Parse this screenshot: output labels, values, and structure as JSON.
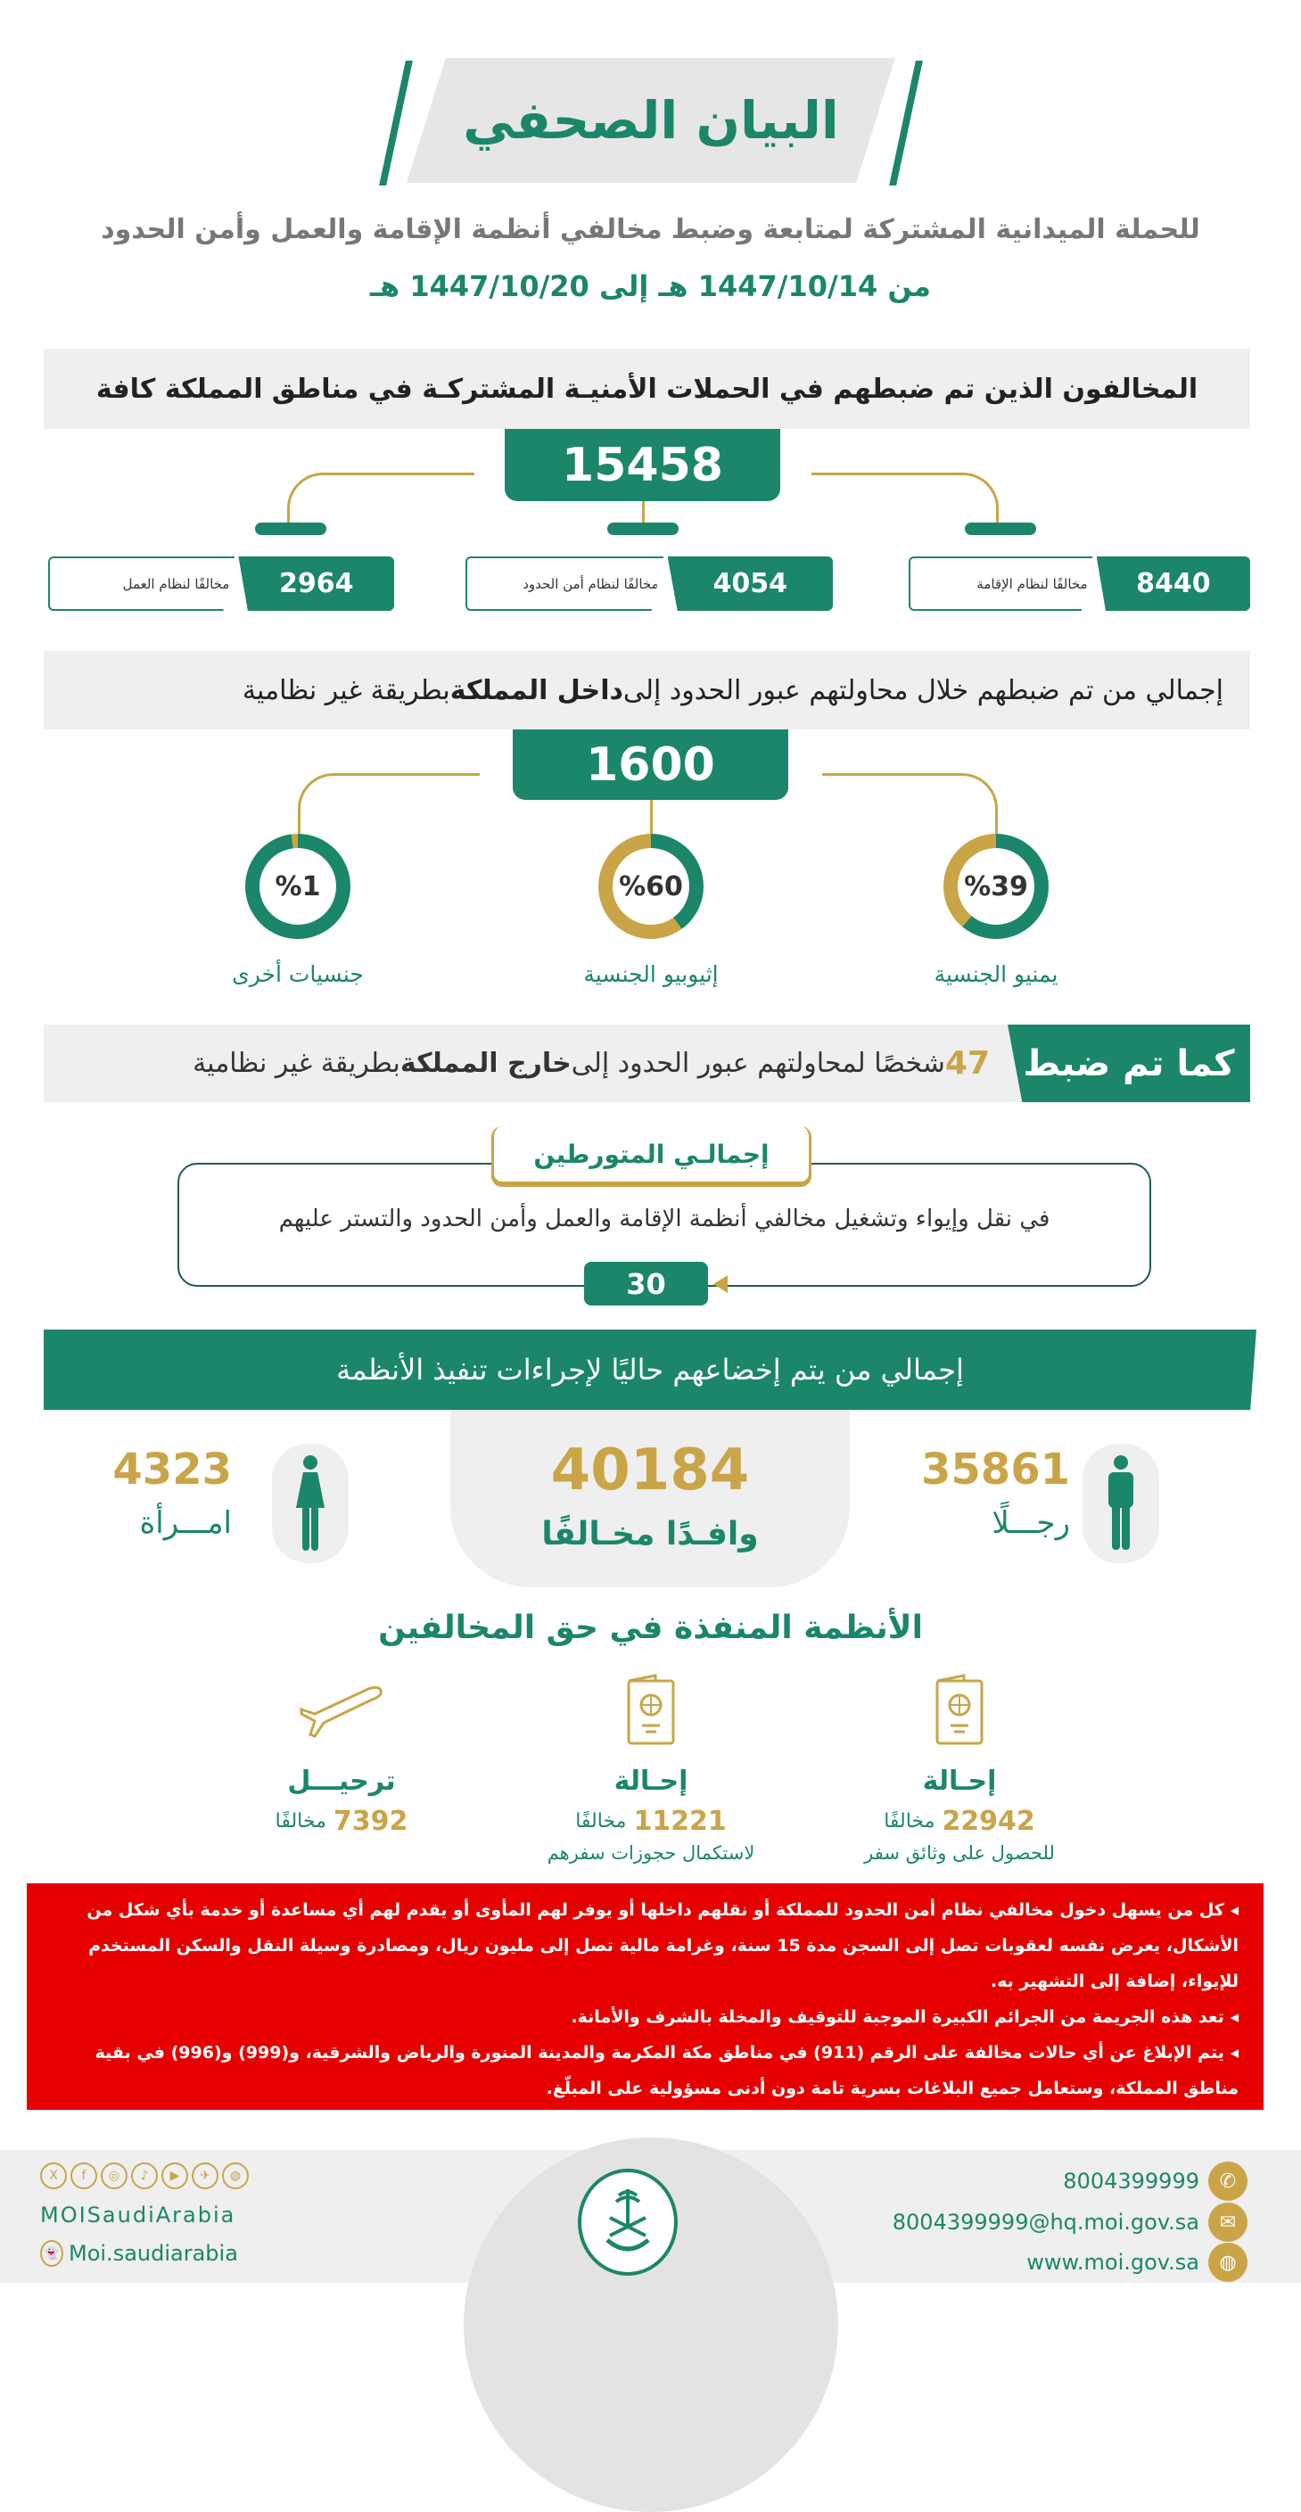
{
  "header": {
    "title": "البيان الصحفي",
    "subtitle": "للحملة الميدانية المشتركة لمتابعة وضبط مخالفي أنظمة الإقامة والعمل وأمن الحدود",
    "date_range": "من 1447/10/14 هـ إلى 1447/10/20 هـ"
  },
  "section1": {
    "heading": "المخالفون الذين تم ضبطهم في الحملات الأمنيـة المشتركـة في مناطق المملكة كافة",
    "total": "15458",
    "items": [
      {
        "value": "8440",
        "label": "مخالفًا لنظام الإقامة"
      },
      {
        "value": "4054",
        "label": "مخالفًا لنظام أمن الحدود"
      },
      {
        "value": "2964",
        "label": "مخالفًا لنظام العمل"
      }
    ]
  },
  "section2": {
    "heading_pre": "إجمالي من تم ضبطهم خلال محاولتهم عبور الحدود إلى ",
    "heading_bold": "داخل المملكة",
    "heading_post": " بطريقة غير نظامية",
    "total": "1600",
    "nationalities": [
      {
        "percent_label": "%39",
        "percent": 39,
        "label": "يمنيو الجنسية"
      },
      {
        "percent_label": "%60",
        "percent": 60,
        "label": "إثيوبيو الجنسية"
      },
      {
        "percent_label": "%1",
        "percent": 1,
        "label": "جنسيات أخرى"
      }
    ]
  },
  "section3": {
    "tag": "كما تم ضبط",
    "count": "47",
    "text_pre": " شخصًا لمحاولتهم عبور الحدود إلى ",
    "text_bold": "خارج المملكة",
    "text_post": " بطريقة غير نظامية"
  },
  "involved": {
    "title": "إجمالـي المتورطين",
    "text": "في نقل وإيواء وتشغيل مخالفي أنظمة الإقامة والعمل وأمن الحدود والتستر عليهم",
    "count": "30"
  },
  "section4": {
    "heading": "إجمالي من يتم إخضاعهم حاليًا لإجراءات تنفيذ الأنظمة",
    "total": "40184",
    "total_label": "وافـدًا مخـالفًا",
    "men": "35861",
    "men_label": "رجـــلًا",
    "women": "4323",
    "women_label": "امـــرأة"
  },
  "measures": {
    "heading": "الأنظمة المنفذة في حق المخالفين",
    "items": [
      {
        "icon": "passport-icon",
        "title": "إحـالة",
        "value": "22942",
        "unit": "مخالفًا",
        "desc": "للحصول على وثائق سفر"
      },
      {
        "icon": "passport-icon",
        "title": "إحـالة",
        "value": "11221",
        "unit": "مخالفًا",
        "desc": "لاستكمال حجوزات سفرهم"
      },
      {
        "icon": "airplane-icon",
        "title": "ترحيـــل",
        "value": "7392",
        "unit": "مخالفًا",
        "desc": ""
      }
    ]
  },
  "warnings": [
    "كل من يسهل دخول مخالفي نظام أمن الحدود للمملكة أو نقلهم داخلها أو يوفر لهم المأوى أو يقدم لهم أي مساعدة أو خدمة بأي شكل من الأشكال، يعرض نفسه لعقوبات تصل إلى السجن مدة 15 سنة، وغرامة مالية تصل إلى مليون ريال، ومصادرة وسيلة النقل والسكن المستخدم للإيواء، إضافة إلى التشهير به.",
    "تعد هذه الجريمة من الجرائم الكبيرة الموجبة للتوقيف والمخلة بالشرف والأمانة.",
    "يتم الإبلاغ عن أي حالات مخالفة على الرقم (911) في مناطق مكة المكرمة والمدينة المنورة والرياض والشرقية، و(999) و(996) في بقية مناطق المملكة، وستعامل جميع البلاغات بسرية تامة دون أدنى مسؤولية على المبلّغ."
  ],
  "footer": {
    "phone": "8004399999",
    "email": "8004399999@hq.moi.gov.sa",
    "website": "www.moi.gov.sa",
    "handle": "MOISaudiArabia",
    "snapchat": "Moi.saudiarabia",
    "social": [
      "X",
      "f",
      "◎",
      "♪",
      "▶",
      "✈",
      "◍"
    ],
    "logo": "emblem"
  },
  "colors": {
    "green": "#1b8669",
    "gold": "#c9a548",
    "red": "#e60000",
    "band": "#efefef"
  }
}
